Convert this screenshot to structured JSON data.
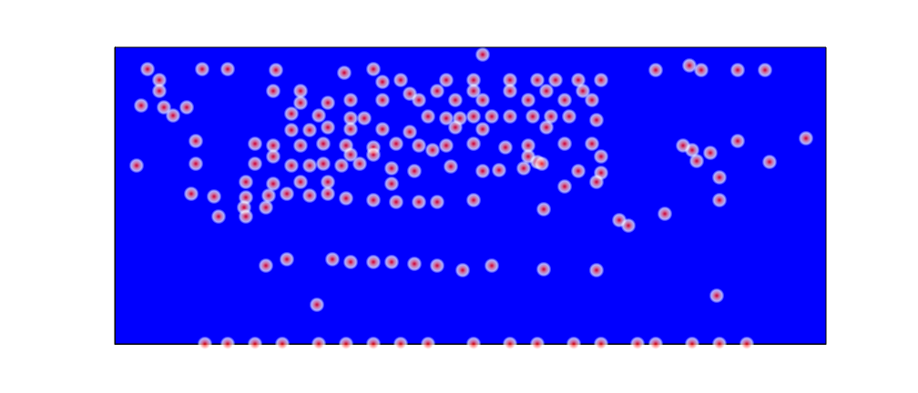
{
  "chart_data": {
    "type": "scatter",
    "color": "#ff0000",
    "tick_labels": false,
    "xlim": [
      0,
      781
    ],
    "ylim": [
      0,
      326
    ],
    "points": [
      [
        36,
        302
      ],
      [
        96,
        302
      ],
      [
        124,
        302
      ],
      [
        177,
        301
      ],
      [
        252,
        298
      ],
      [
        284,
        302
      ],
      [
        594,
        301
      ],
      [
        631,
        306
      ],
      [
        644,
        301
      ],
      [
        684,
        301
      ],
      [
        714,
        301
      ],
      [
        404,
        318
      ],
      [
        49,
        290
      ],
      [
        294,
        288
      ],
      [
        314,
        290
      ],
      [
        364,
        290
      ],
      [
        394,
        290
      ],
      [
        434,
        290
      ],
      [
        464,
        290
      ],
      [
        484,
        290
      ],
      [
        509,
        290
      ],
      [
        534,
        290
      ],
      [
        49,
        278
      ],
      [
        174,
        278
      ],
      [
        204,
        278
      ],
      [
        324,
        275
      ],
      [
        354,
        278
      ],
      [
        394,
        278
      ],
      [
        434,
        278
      ],
      [
        474,
        278
      ],
      [
        514,
        278
      ],
      [
        29,
        262
      ],
      [
        54,
        260
      ],
      [
        79,
        260
      ],
      [
        204,
        265
      ],
      [
        234,
        265
      ],
      [
        259,
        268
      ],
      [
        294,
        268
      ],
      [
        334,
        268
      ],
      [
        374,
        268
      ],
      [
        404,
        268
      ],
      [
        454,
        268
      ],
      [
        494,
        268
      ],
      [
        524,
        268
      ],
      [
        64,
        251
      ],
      [
        194,
        253
      ],
      [
        224,
        251
      ],
      [
        259,
        248
      ],
      [
        274,
        248
      ],
      [
        344,
        250
      ],
      [
        364,
        248
      ],
      [
        379,
        248
      ],
      [
        394,
        250
      ],
      [
        414,
        250
      ],
      [
        434,
        250
      ],
      [
        459,
        250
      ],
      [
        479,
        250
      ],
      [
        499,
        250
      ],
      [
        529,
        246
      ],
      [
        194,
        235
      ],
      [
        214,
        235
      ],
      [
        234,
        238
      ],
      [
        259,
        236
      ],
      [
        294,
        236
      ],
      [
        324,
        233
      ],
      [
        374,
        238
      ],
      [
        404,
        236
      ],
      [
        474,
        238
      ],
      [
        89,
        223
      ],
      [
        154,
        220
      ],
      [
        174,
        218
      ],
      [
        204,
        218
      ],
      [
        229,
        220
      ],
      [
        254,
        218
      ],
      [
        284,
        216
      ],
      [
        309,
        220
      ],
      [
        334,
        218
      ],
      [
        364,
        218
      ],
      [
        394,
        220
      ],
      [
        429,
        216
      ],
      [
        454,
        218
      ],
      [
        494,
        220
      ],
      [
        524,
        220
      ],
      [
        174,
        206
      ],
      [
        259,
        208
      ],
      [
        284,
        208
      ],
      [
        349,
        213
      ],
      [
        454,
        206
      ],
      [
        464,
        200
      ],
      [
        534,
        206
      ],
      [
        634,
        213
      ],
      [
        684,
        223
      ],
      [
        759,
        226
      ],
      [
        624,
        218
      ],
      [
        654,
        210
      ],
      [
        24,
        196
      ],
      [
        89,
        198
      ],
      [
        154,
        198
      ],
      [
        194,
        196
      ],
      [
        214,
        196
      ],
      [
        229,
        198
      ],
      [
        249,
        196
      ],
      [
        269,
        198
      ],
      [
        304,
        193
      ],
      [
        329,
        190
      ],
      [
        369,
        195
      ],
      [
        404,
        190
      ],
      [
        422,
        191
      ],
      [
        449,
        193
      ],
      [
        469,
        198
      ],
      [
        509,
        190
      ],
      [
        534,
        188
      ],
      [
        639,
        201
      ],
      [
        719,
        200
      ],
      [
        144,
        178
      ],
      [
        174,
        176
      ],
      [
        204,
        178
      ],
      [
        234,
        178
      ],
      [
        304,
        176
      ],
      [
        494,
        173
      ],
      [
        529,
        178
      ],
      [
        664,
        183
      ],
      [
        84,
        165
      ],
      [
        109,
        162
      ],
      [
        144,
        161
      ],
      [
        169,
        163
      ],
      [
        189,
        165
      ],
      [
        214,
        163
      ],
      [
        234,
        165
      ],
      [
        254,
        160
      ],
      [
        284,
        158
      ],
      [
        309,
        156
      ],
      [
        334,
        156
      ],
      [
        354,
        156
      ],
      [
        394,
        158
      ],
      [
        471,
        148
      ],
      [
        142,
        150
      ],
      [
        166,
        150
      ],
      [
        114,
        140
      ],
      [
        144,
        140
      ],
      [
        554,
        136
      ],
      [
        564,
        130
      ],
      [
        604,
        143
      ],
      [
        664,
        158
      ],
      [
        166,
        86
      ],
      [
        189,
        93
      ],
      [
        239,
        93
      ],
      [
        259,
        90
      ],
      [
        284,
        90
      ],
      [
        304,
        90
      ],
      [
        329,
        88
      ],
      [
        354,
        86
      ],
      [
        382,
        81
      ],
      [
        414,
        86
      ],
      [
        471,
        82
      ],
      [
        529,
        81
      ],
      [
        222,
        43
      ],
      [
        661,
        53
      ],
      [
        99,
        0
      ],
      [
        124,
        0
      ],
      [
        154,
        0
      ],
      [
        184,
        0
      ],
      [
        224,
        0
      ],
      [
        254,
        0
      ],
      [
        284,
        0
      ],
      [
        314,
        0
      ],
      [
        344,
        0
      ],
      [
        394,
        0
      ],
      [
        434,
        0
      ],
      [
        464,
        0
      ],
      [
        504,
        0
      ],
      [
        534,
        0
      ],
      [
        574,
        0
      ],
      [
        594,
        0
      ],
      [
        634,
        0
      ],
      [
        664,
        0
      ],
      [
        694,
        0
      ]
    ]
  }
}
